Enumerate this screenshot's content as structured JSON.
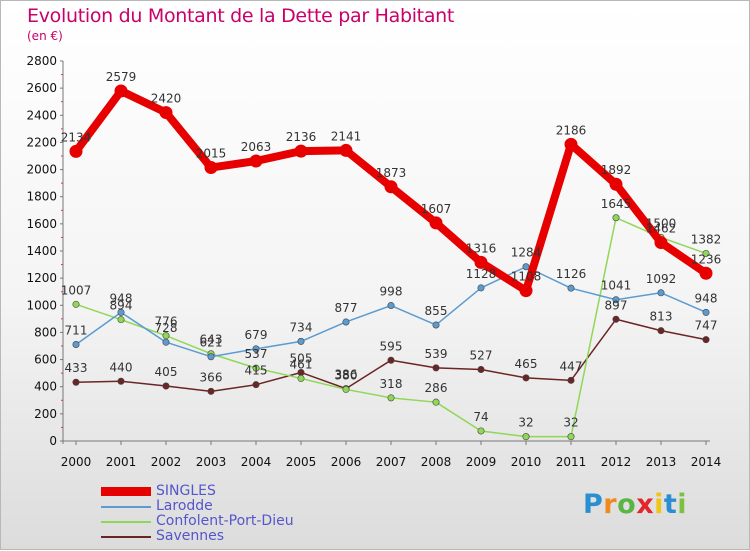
{
  "title": "Evolution du Montant de la Dette par Habitant",
  "subtitle": "(en €)",
  "logo": {
    "text": "Proxiti",
    "letters": [
      {
        "ch": "P",
        "color": "#2a8fd0"
      },
      {
        "ch": "r",
        "color": "#f08a1c"
      },
      {
        "ch": "o",
        "color": "#5bb543"
      },
      {
        "ch": "x",
        "color": "#e2262a"
      },
      {
        "ch": "i",
        "color": "#f0c419"
      },
      {
        "ch": "t",
        "color": "#2a8fd0"
      },
      {
        "ch": "i",
        "color": "#7cc242"
      }
    ]
  },
  "chart_data": {
    "type": "line",
    "title": "Evolution du Montant de la Dette par Habitant",
    "subtitle": "(en €)",
    "xlabel": "",
    "ylabel": "",
    "ylim": [
      0,
      2800
    ],
    "yticks": [
      0,
      200,
      400,
      600,
      800,
      1000,
      1200,
      1400,
      1600,
      1800,
      2000,
      2200,
      2400,
      2600,
      2800
    ],
    "grid": false,
    "legend_position": "bottom-left",
    "categories": [
      "2000",
      "2001",
      "2002",
      "2003",
      "2004",
      "2005",
      "2006",
      "2007",
      "2008",
      "2009",
      "2010",
      "2011",
      "2012",
      "2013",
      "2014"
    ],
    "series": [
      {
        "name": "SINGLES",
        "color": "#e60000",
        "style": "thick",
        "values": [
          2134,
          2579,
          2420,
          2015,
          2063,
          2136,
          2141,
          1873,
          1607,
          1316,
          1108,
          2186,
          1892,
          1462,
          1236
        ]
      },
      {
        "name": "Larodde",
        "color": "#5b9bd0",
        "style": "thin",
        "values": [
          711,
          948,
          728,
          621,
          679,
          734,
          877,
          998,
          855,
          1128,
          1284,
          1126,
          1041,
          1092,
          948
        ]
      },
      {
        "name": "Confolent-Port-Dieu",
        "color": "#8fd855",
        "style": "thin",
        "values": [
          1007,
          894,
          776,
          643,
          537,
          461,
          380,
          318,
          286,
          74,
          32,
          32,
          1645,
          1500,
          1382
        ]
      },
      {
        "name": "Savennes",
        "color": "#6b2525",
        "style": "thin",
        "values": [
          433,
          440,
          405,
          366,
          415,
          505,
          386,
          595,
          539,
          527,
          465,
          447,
          897,
          813,
          747
        ]
      }
    ]
  }
}
